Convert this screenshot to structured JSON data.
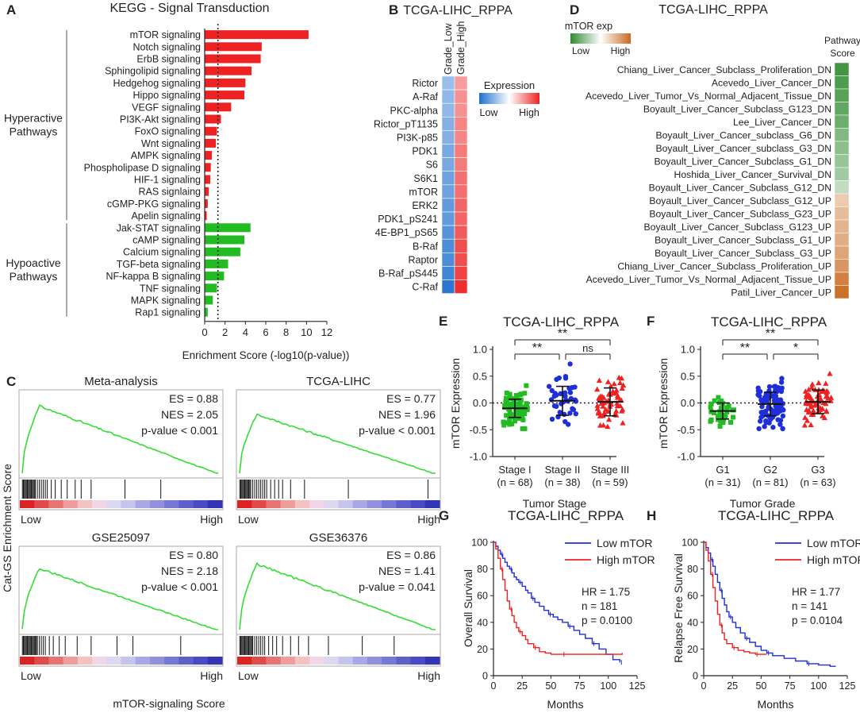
{
  "panels": {
    "A": "A",
    "B": "B",
    "C": "C",
    "D": "D",
    "E": "E",
    "F": "F",
    "G": "G",
    "H": "H"
  },
  "chart_data": [
    {
      "id": "A",
      "type": "bar",
      "orientation": "horizontal",
      "title": "KEGG - Signal Transduction",
      "xlabel": "Enrichment Score (-log10(p-value))",
      "xlim": [
        0,
        12
      ],
      "xticks": [
        0,
        2,
        4,
        6,
        8,
        10,
        12
      ],
      "threshold": 1.3,
      "groups": [
        {
          "name": "Hyperactive Pathways",
          "line1": "Hyperactive",
          "line2": "Pathways",
          "color": "#ee2222",
          "categories": [
            "mTOR signaling",
            "Notch signaling",
            "ErbB signaling",
            "Sphingolipid signaling",
            "Hedgehog signaling",
            "Hippo signaling",
            "VEGF signaling",
            "PI3K-Akt signaling",
            "FoxO signaling",
            "Wnt signaling",
            "AMPK signaling",
            "Phospholipase D signaling",
            "HIF-1 signaling",
            "RAS signlaing",
            "cGMP-PKG signaling",
            "Apelin signaling"
          ],
          "values": [
            10.2,
            5.6,
            5.5,
            4.6,
            4.0,
            3.9,
            2.6,
            1.6,
            1.2,
            1.1,
            0.7,
            0.6,
            0.55,
            0.4,
            0.3,
            0.2
          ]
        },
        {
          "name": "Hypoactive Pathways",
          "line1": "Hypoactive",
          "line2": "Pathways",
          "color": "#22bb22",
          "categories": [
            "Jak-STAT signaling",
            "cAMP signaling",
            "Calcium signaling",
            "TGF-beta signaling",
            "NF-kappa B signaling",
            "TNF signaling",
            "MAPK signaling",
            "Rap1 signaling"
          ],
          "values": [
            4.5,
            3.9,
            3.5,
            2.3,
            1.9,
            1.2,
            0.8,
            0.3
          ]
        }
      ]
    },
    {
      "id": "B",
      "type": "heatmap",
      "title": "TCGA-LIHC_RPPA",
      "columns": [
        "Grade_Low",
        "Grade_High"
      ],
      "rows": [
        "Rictor",
        "A-Raf",
        "PKC-alpha",
        "Rictor_pT1135",
        "PI3K-p85",
        "PDK1",
        "S6",
        "S6K1",
        "mTOR",
        "ERK2",
        "PDK1_pS241",
        "4E-BP1_pS65",
        "B-Raf",
        "Raptor",
        "B-Raf_pS445",
        "C-Raf"
      ],
      "values": [
        [
          -0.45,
          0.45
        ],
        [
          -0.5,
          0.5
        ],
        [
          -0.5,
          0.5
        ],
        [
          -0.55,
          0.55
        ],
        [
          -0.55,
          0.55
        ],
        [
          -0.6,
          0.6
        ],
        [
          -0.6,
          0.6
        ],
        [
          -0.65,
          0.65
        ],
        [
          -0.65,
          0.65
        ],
        [
          -0.7,
          0.7
        ],
        [
          -0.7,
          0.7
        ],
        [
          -0.75,
          0.75
        ],
        [
          -0.8,
          0.8
        ],
        [
          -0.8,
          0.8
        ],
        [
          -0.85,
          0.85
        ],
        [
          -0.95,
          0.95
        ]
      ],
      "legend": {
        "title": "Expression",
        "low": "Low",
        "high": "High",
        "low_color": "#1f6fd0",
        "high_color": "#ee2222"
      }
    },
    {
      "id": "C",
      "type": "line",
      "subtype": "gsea",
      "ylabel": "Cat-GS Enrichment Score",
      "xlabel": "mTOR-signaling Score",
      "x_low": "Low",
      "x_high": "High",
      "plots": [
        {
          "title": "Meta-analysis",
          "es": "ES = 0.88",
          "nes": "NES = 2.05",
          "p": "p-value < 0.001",
          "peak": 0.88,
          "hits": [
            0.005,
            0.01,
            0.015,
            0.02,
            0.025,
            0.03,
            0.035,
            0.04,
            0.045,
            0.05,
            0.055,
            0.06,
            0.065,
            0.07,
            0.08,
            0.09,
            0.1,
            0.11,
            0.12,
            0.13,
            0.15,
            0.17,
            0.2,
            0.23,
            0.27,
            0.3,
            0.35,
            0.52,
            0.7
          ]
        },
        {
          "title": "TCGA-LIHC",
          "es": "ES = 0.77",
          "nes": "NES = 1.96",
          "p": "p-value < 0.001",
          "peak": 0.77,
          "hits": [
            0.005,
            0.01,
            0.015,
            0.02,
            0.025,
            0.03,
            0.035,
            0.04,
            0.045,
            0.05,
            0.055,
            0.06,
            0.07,
            0.08,
            0.09,
            0.1,
            0.11,
            0.12,
            0.13,
            0.14,
            0.16,
            0.18,
            0.2,
            0.22,
            0.26,
            0.33,
            0.55,
            0.95
          ]
        },
        {
          "title": "GSE25097",
          "es": "ES = 0.80",
          "nes": "NES = 2.18",
          "p": "p-value < 0.001",
          "peak": 0.8,
          "hits": [
            0.005,
            0.01,
            0.015,
            0.02,
            0.025,
            0.03,
            0.035,
            0.04,
            0.045,
            0.05,
            0.055,
            0.06,
            0.065,
            0.07,
            0.075,
            0.08,
            0.09,
            0.1,
            0.11,
            0.12,
            0.14,
            0.16,
            0.19,
            0.22,
            0.28,
            0.35,
            0.48,
            0.56,
            0.8
          ]
        },
        {
          "title": "GSE36376",
          "es": "ES = 0.86",
          "nes": "NES = 1.41",
          "p": "p-value = 0.041",
          "peak": 0.86,
          "hits": [
            0.005,
            0.01,
            0.015,
            0.02,
            0.025,
            0.03,
            0.035,
            0.04,
            0.045,
            0.05,
            0.055,
            0.06,
            0.065,
            0.07,
            0.08,
            0.09,
            0.1,
            0.11,
            0.12,
            0.13,
            0.15,
            0.17,
            0.19,
            0.22,
            0.26,
            0.3,
            0.35,
            0.45,
            0.62,
            0.78
          ]
        }
      ]
    },
    {
      "id": "D",
      "type": "heatmap",
      "title": "TCGA-LIHC_RPPA",
      "legend": {
        "title": "mTOR exp",
        "low": "Low",
        "high": "High",
        "low_color": "#2f8a30",
        "high_color": "#c9691f"
      },
      "column": "Pathway Score",
      "col_line1": "Pathway",
      "col_line2": "Score",
      "rows": [
        "Chiang_Liver_Cancer_Subclass_Proliferation_DN",
        "Acevedo_Liver_Cancer_DN",
        "Acevedo_Liver_Tumor_Vs_Normal_Adjacent_Tissue_DN",
        "Boyault_Liver_Cancer_Subclass_G123_DN",
        "Lee_Liver_Cancer_DN",
        "Boyault_Liver_Cancer_subclass_G6_DN",
        "Boyault_Liver_Cancer_subclass_G3_DN",
        "Boyault_Liver_Cancer_Subclass_G1_DN",
        "Hoshida_Liver_Cancer_Survival_DN",
        "Boyault_Liver_Cancer_Subclass_G12_DN",
        "Boyault_Liver_Cancer_Subclass_G12_UP",
        "Boyault_Liver_Cancer_Subclass_G23_UP",
        "Boyault_Liver_Cancer_Subclass_G123_UP",
        "Boyault_Liver_Cancer_Subclass_G1_UP",
        "Boyault_Liver_Cancer_Subclass_G3_UP",
        "Chiang_Liver_Cancer_Subclass_Proliferation_UP",
        "Acevedo_Liver_Tumor_Vs_Normal_Adjacent_Tissue_UP",
        "Patil_Liver_Cancer_UP"
      ],
      "values": [
        -0.9,
        -0.85,
        -0.8,
        -0.75,
        -0.7,
        -0.6,
        -0.55,
        -0.5,
        -0.45,
        -0.3,
        0.35,
        0.45,
        0.5,
        0.55,
        0.6,
        0.7,
        0.85,
        0.95
      ]
    },
    {
      "id": "E",
      "type": "scatter",
      "subtype": "dot-plot",
      "title": "TCGA-LIHC_RPPA",
      "ylabel": "mTOR Expression",
      "xlabel": "Tumor Stage",
      "ylim": [
        -1.0,
        1.0
      ],
      "yticks": [
        "-1.0",
        "-0.5",
        "0.0",
        "0.5",
        "1.0"
      ],
      "groups": [
        {
          "name": "Stage I",
          "n": "(n = 68)",
          "color": "#22bb22",
          "shape": "square",
          "mean": -0.1,
          "sd": 0.17
        },
        {
          "name": "Stage II",
          "n": "(n = 38)",
          "color": "#1f2fd8",
          "shape": "circle",
          "mean": 0.04,
          "sd": 0.27
        },
        {
          "name": "Stage III",
          "n": "(n = 59)",
          "color": "#ee2222",
          "shape": "triangle",
          "mean": 0.02,
          "sd": 0.26
        }
      ],
      "brackets": [
        {
          "from": 0,
          "to": 1,
          "label": "**"
        },
        {
          "from": 1,
          "to": 2,
          "label": "ns"
        },
        {
          "from": 0,
          "to": 2,
          "label": "**"
        }
      ]
    },
    {
      "id": "F",
      "type": "scatter",
      "subtype": "dot-plot",
      "title": "TCGA-LIHC_RPPA",
      "ylabel": "mTOR Expression",
      "xlabel": "Tumor Grade",
      "ylim": [
        -1.0,
        1.0
      ],
      "yticks": [
        "-1.0",
        "-0.5",
        "0.0",
        "0.5",
        "1.0"
      ],
      "groups": [
        {
          "name": "G1",
          "n": "(n = 31)",
          "color": "#22bb22",
          "shape": "square",
          "mean": -0.15,
          "sd": 0.15
        },
        {
          "name": "G2",
          "n": "(n = 81)",
          "color": "#1f2fd8",
          "shape": "circle",
          "mean": -0.02,
          "sd": 0.22
        },
        {
          "name": "G3",
          "n": "(n = 63)",
          "color": "#ee2222",
          "shape": "triangle",
          "mean": 0.02,
          "sd": 0.22
        }
      ],
      "brackets": [
        {
          "from": 0,
          "to": 1,
          "label": "**"
        },
        {
          "from": 1,
          "to": 2,
          "label": "*"
        },
        {
          "from": 0,
          "to": 2,
          "label": "**"
        }
      ]
    },
    {
      "id": "G",
      "type": "line",
      "subtype": "kaplan-meier",
      "title": "TCGA-LIHC_RPPA",
      "ylabel": "Overall Survival",
      "xlabel": "Months",
      "xlim": [
        0,
        125
      ],
      "ylim": [
        0,
        100
      ],
      "xticks": [
        0,
        25,
        50,
        75,
        100,
        125
      ],
      "yticks": [
        0,
        20,
        40,
        60,
        80,
        100
      ],
      "series": [
        {
          "name": "Low mTOR",
          "color": "#1f2fd8",
          "x": [
            0,
            2,
            4,
            6,
            8,
            10,
            12,
            14,
            16,
            18,
            20,
            22,
            25,
            28,
            30,
            33,
            36,
            40,
            44,
            48,
            52,
            56,
            60,
            65,
            70,
            75,
            80,
            86,
            92,
            98,
            104,
            110
          ],
          "y": [
            100,
            97,
            94,
            91,
            88,
            85,
            82,
            80,
            77,
            74,
            72,
            70,
            67,
            64,
            62,
            58,
            55,
            52,
            49,
            46,
            44,
            42,
            40,
            37,
            34,
            31,
            28,
            24,
            20,
            16,
            12,
            10
          ]
        },
        {
          "name": "High mTOR",
          "color": "#ee2222",
          "x": [
            0,
            2,
            4,
            6,
            8,
            10,
            12,
            14,
            16,
            18,
            20,
            22,
            25,
            28,
            30,
            35,
            40,
            45,
            50,
            60,
            80,
            100,
            112
          ],
          "y": [
            100,
            95,
            88,
            80,
            72,
            64,
            56,
            50,
            45,
            40,
            36,
            33,
            30,
            27,
            24,
            21,
            18,
            17,
            16,
            16,
            16,
            16,
            17
          ]
        }
      ],
      "stats": {
        "hr": "HR = 1.75",
        "n": "n = 181",
        "p": "p = 0.0100"
      }
    },
    {
      "id": "H",
      "type": "line",
      "subtype": "kaplan-meier",
      "title": "TCGA-LIHC_RPPA",
      "ylabel": "Relapse Free Survival",
      "xlabel": "Months",
      "xlim": [
        0,
        125
      ],
      "ylim": [
        0,
        100
      ],
      "xticks": [
        0,
        25,
        50,
        75,
        100,
        125
      ],
      "yticks": [
        0,
        20,
        40,
        60,
        80,
        100
      ],
      "series": [
        {
          "name": "Low mTOR",
          "color": "#1f2fd8",
          "x": [
            0,
            2,
            4,
            6,
            8,
            10,
            12,
            14,
            16,
            18,
            20,
            22,
            25,
            28,
            32,
            36,
            40,
            45,
            50,
            55,
            60,
            70,
            80,
            90,
            100,
            110,
            115
          ],
          "y": [
            100,
            96,
            92,
            87,
            82,
            76,
            70,
            64,
            58,
            53,
            48,
            44,
            40,
            36,
            32,
            28,
            25,
            22,
            19,
            17,
            15,
            13,
            11,
            9,
            8,
            7,
            7
          ]
        },
        {
          "name": "High mTOR",
          "color": "#ee2222",
          "x": [
            0,
            2,
            4,
            6,
            8,
            10,
            12,
            14,
            16,
            18,
            20,
            25,
            30,
            35,
            40,
            45,
            50,
            55
          ],
          "y": [
            100,
            94,
            86,
            76,
            66,
            56,
            46,
            38,
            32,
            27,
            24,
            21,
            19,
            18,
            17,
            16,
            16,
            16
          ]
        }
      ],
      "stats": {
        "hr": "HR = 1.77",
        "n": "n = 141",
        "p": "p = 0.0104"
      }
    }
  ]
}
